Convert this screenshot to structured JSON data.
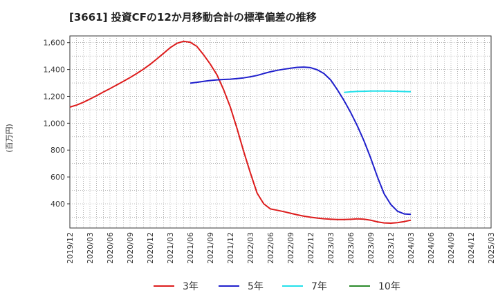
{
  "chart_data": {
    "type": "line",
    "title": "[3661]  投資CFの12か月移動合計の標準偏差の推移",
    "ylabel": "(百万円)",
    "xlabel": "",
    "ylim": [
      220,
      1650
    ],
    "yticks": [
      400,
      600,
      800,
      1000,
      1200,
      1400,
      1600
    ],
    "ytick_labels": [
      "400",
      "600",
      "800",
      "1,000",
      "1,200",
      "1,400",
      "1,600"
    ],
    "x_ticks": [
      "2019/12",
      "2020/03",
      "2020/06",
      "2020/09",
      "2020/12",
      "2021/03",
      "2021/06",
      "2021/09",
      "2021/12",
      "2022/03",
      "2022/06",
      "2022/09",
      "2022/12",
      "2023/03",
      "2023/06",
      "2023/09",
      "2023/12",
      "2024/03",
      "2024/06",
      "2024/09",
      "2024/12",
      "2025/03"
    ],
    "grid": true,
    "legend_position": "bottom",
    "series": [
      {
        "name": "3年",
        "color": "#dd1c1c",
        "values": [
          1120,
          1135,
          1155,
          1180,
          1205,
          1232,
          1258,
          1285,
          1312,
          1340,
          1370,
          1402,
          1438,
          1478,
          1520,
          1562,
          1595,
          1610,
          1603,
          1572,
          1510,
          1440,
          1360,
          1250,
          1120,
          960,
          790,
          630,
          480,
          400,
          362,
          352,
          342,
          330,
          318,
          308,
          300,
          294,
          289,
          286,
          283,
          283,
          285,
          288,
          286,
          278,
          266,
          258,
          256,
          260,
          268,
          278
        ],
        "start_index": 0
      },
      {
        "name": "5年",
        "color": "#1f1fcc",
        "values": [
          1298,
          1305,
          1312,
          1318,
          1323,
          1326,
          1328,
          1332,
          1338,
          1346,
          1356,
          1370,
          1383,
          1394,
          1402,
          1410,
          1416,
          1418,
          1414,
          1398,
          1370,
          1323,
          1250,
          1170,
          1080,
          980,
          868,
          740,
          600,
          475,
          395,
          345,
          325,
          322
        ],
        "start_index": 18
      },
      {
        "name": "7年",
        "color": "#22e0ea",
        "values": [
          1230,
          1234,
          1237,
          1238,
          1240,
          1240,
          1240,
          1239,
          1238,
          1236,
          1235
        ],
        "start_index": 41
      },
      {
        "name": "10年",
        "color": "#2a8a2a",
        "values": [],
        "start_index": 0
      }
    ]
  }
}
